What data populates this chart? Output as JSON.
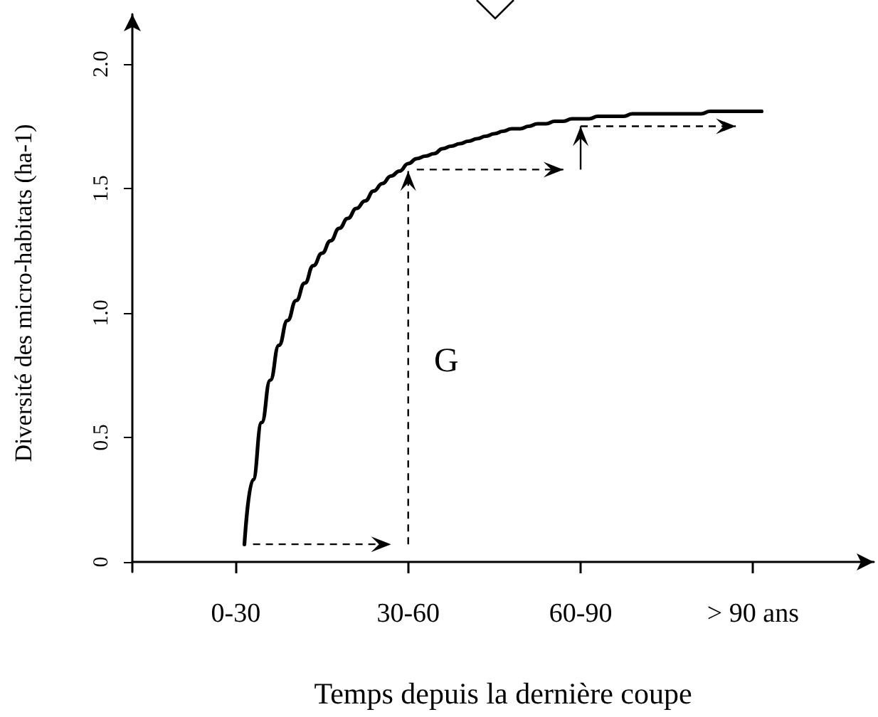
{
  "chart_data": {
    "type": "line",
    "xlabel": "Temps depuis la dernière coupe",
    "ylabel": "Diversité des micro-habitats (ha-1)",
    "categories": [
      null,
      null,
      null,
      null,
      null,
      null,
      null,
      null,
      null,
      null,
      null,
      null,
      "0-30",
      null,
      null,
      null,
      null,
      null,
      null,
      null,
      null,
      null,
      null,
      null,
      null,
      null,
      null,
      null,
      null,
      null,
      null,
      null,
      "30-60",
      null,
      null,
      null,
      null,
      null,
      null,
      null,
      null,
      null,
      null,
      null,
      null,
      null,
      null,
      null,
      null,
      null,
      null,
      null,
      "60-90",
      null,
      null,
      null,
      null,
      null,
      null,
      null,
      null,
      null,
      null,
      null,
      null,
      null,
      null,
      null,
      null,
      null,
      null,
      null,
      "> 90 ans",
      null,
      null,
      null,
      null,
      null,
      null,
      null,
      null,
      null,
      null,
      null,
      null,
      null,
      null
    ],
    "series": [
      {
        "color": "#000000",
        "values": [
          null,
          null,
          null,
          null,
          null,
          null,
          null,
          null,
          null,
          null,
          null,
          null,
          null,
          0.07,
          0.33,
          0.56,
          0.73,
          0.87,
          0.97,
          1.05,
          1.12,
          1.19,
          1.24,
          1.29,
          1.34,
          1.38,
          1.42,
          1.45,
          1.49,
          1.52,
          1.55,
          1.57,
          1.6,
          1.62,
          1.63,
          1.64,
          1.66,
          1.67,
          1.68,
          1.69,
          1.7,
          1.71,
          1.72,
          1.73,
          1.74,
          1.74,
          1.75,
          1.76,
          1.76,
          1.77,
          1.77,
          1.78,
          1.78,
          1.78,
          1.79,
          1.79,
          1.79,
          1.79,
          1.8,
          1.8,
          1.8,
          1.8,
          1.8,
          1.8,
          1.8,
          1.8,
          1.8,
          1.81,
          1.81,
          1.81,
          1.81,
          1.81,
          1.81,
          1.81,
          null,
          null,
          null,
          null,
          null,
          null,
          null,
          null,
          null,
          null,
          null,
          null,
          null
        ]
      }
    ],
    "ylim": [
      -0.04,
      2.2
    ],
    "yticks": [
      0,
      0.5,
      {
        "value": 1,
        "label": "1.0"
      },
      1.5,
      {
        "value": 2,
        "label": "2.0"
      }
    ],
    "annotations": [
      "G"
    ],
    "grid": false,
    "marker": "none",
    "line_style": "solid"
  }
}
